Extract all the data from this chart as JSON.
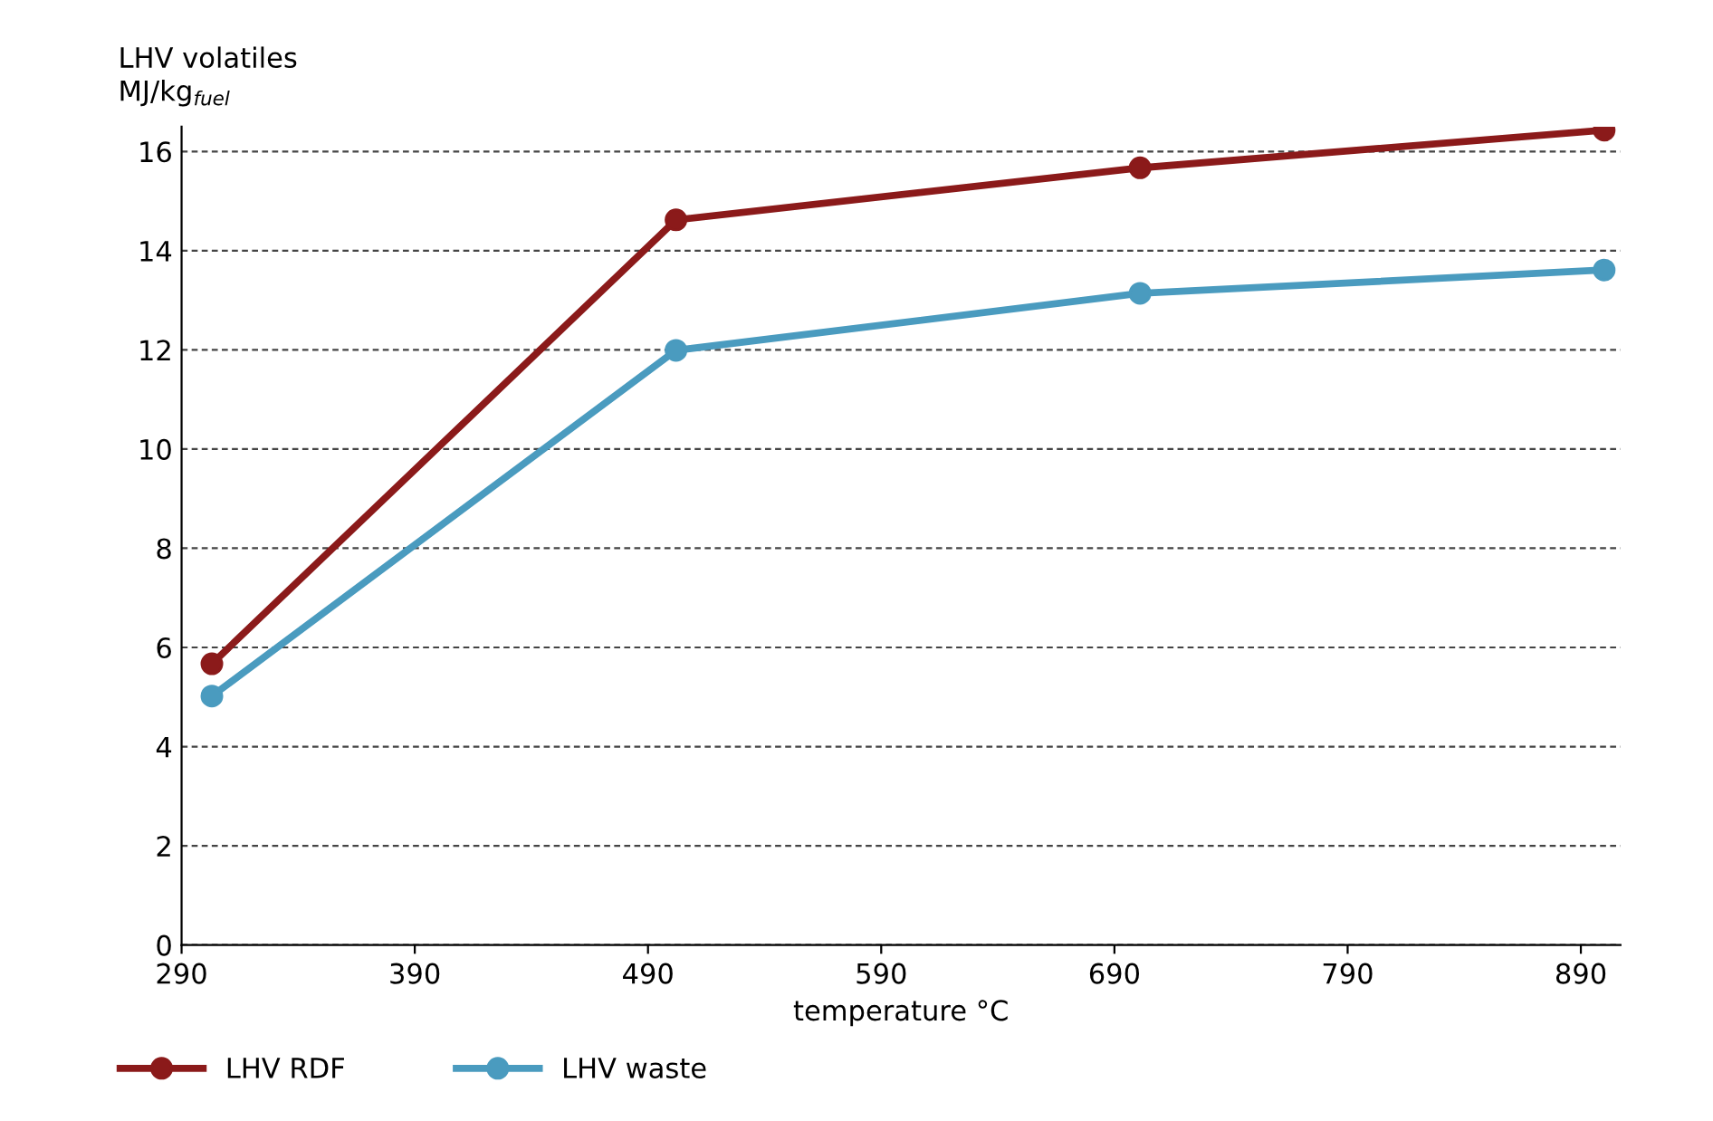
{
  "chart_data": {
    "type": "line",
    "ylabel": "LHV volatiles\nMJ/kg$_{fuel}$",
    "xlabel": "temperature °C",
    "x": [
      303,
      502,
      701,
      900
    ],
    "series": [
      {
        "name": "LHV RDF",
        "color": "#8b1a1a",
        "values": [
          5.67,
          14.62,
          15.67,
          16.43
        ]
      },
      {
        "name": "LHV waste",
        "color": "#4a9bbf",
        "values": [
          5.02,
          11.99,
          13.14,
          13.61
        ]
      }
    ],
    "xlim": [
      290,
      907
    ],
    "xticks": [
      290,
      390,
      490,
      590,
      690,
      790,
      890
    ],
    "ylim": [
      0,
      16.5
    ],
    "yticks": [
      0,
      2,
      4,
      6,
      8,
      10,
      12,
      14,
      16
    ],
    "grid": "y",
    "legend": "bottom left",
    "marker": "circle",
    "line_style": "solid"
  }
}
